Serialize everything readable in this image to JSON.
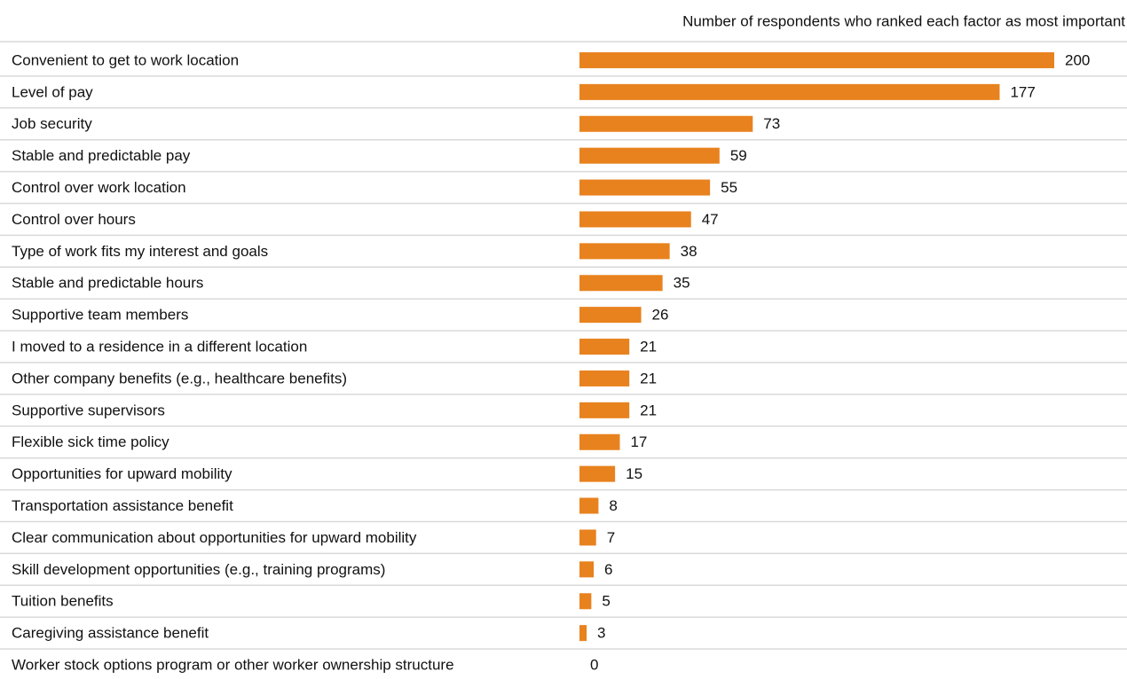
{
  "chart_data": {
    "type": "bar",
    "orientation": "horizontal",
    "x_label": "Number of respondents who ranked each factor as most important",
    "color": "#e8821e",
    "categories": [
      "Convenient to get to work location",
      "Level of pay",
      "Job security",
      "Stable and predictable pay",
      "Control over work location",
      "Control over hours",
      "Type of work fits my interest and goals",
      "Stable and predictable hours",
      "Supportive team members",
      "I moved to a residence in a different location",
      "Other company benefits (e.g., healthcare benefits)",
      "Supportive supervisors",
      "Flexible sick time policy",
      "Opportunities for upward mobility",
      "Transportation assistance benefit",
      "Clear communication about opportunities for upward mobility",
      "Skill development opportunities (e.g., training programs)",
      "Tuition benefits",
      "Caregiving assistance benefit",
      "Worker stock options program or other worker ownership structure"
    ],
    "values": [
      200,
      177,
      73,
      59,
      55,
      47,
      38,
      35,
      26,
      21,
      21,
      21,
      17,
      15,
      8,
      7,
      6,
      5,
      3,
      0
    ]
  }
}
